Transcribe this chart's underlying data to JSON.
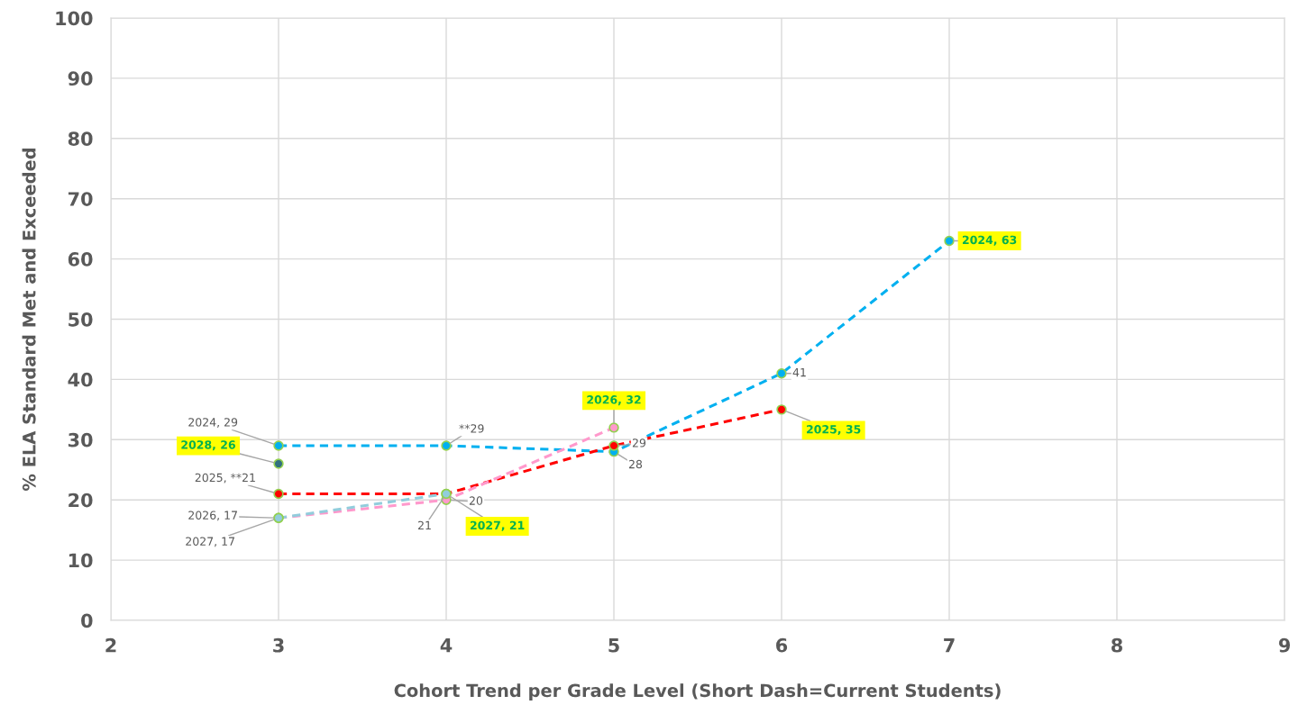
{
  "chart_data": {
    "type": "line",
    "xlabel": "Cohort Trend per Grade Level (Short Dash=Current Students)",
    "ylabel": "% ELA Standard Met and Exceeded",
    "xlim": [
      2,
      9
    ],
    "xticks": [
      2,
      3,
      4,
      5,
      6,
      7,
      8,
      9
    ],
    "ylim": [
      0,
      100
    ],
    "yticks": [
      0,
      10,
      20,
      30,
      40,
      50,
      60,
      70,
      80,
      90,
      100
    ],
    "grid": true,
    "legend": false,
    "marker": "circle",
    "line_style": "dashed",
    "series": [
      {
        "color": "#00b0f0",
        "x": [
          3,
          4,
          5,
          6,
          7
        ],
        "values": [
          29,
          29,
          28,
          41,
          63
        ],
        "value_labels": [
          "2024, 29",
          "**29",
          "28",
          "41",
          "2024, 63"
        ]
      },
      {
        "color": "#ff0000",
        "x": [
          3,
          4,
          5,
          6
        ],
        "values": [
          21,
          21,
          29,
          35
        ],
        "value_labels": [
          "2025, **21",
          "21",
          "29",
          "2025, 35"
        ]
      },
      {
        "color": "#ff99cc",
        "x": [
          3,
          4,
          5
        ],
        "values": [
          17,
          20,
          32
        ],
        "value_labels": [
          "2026, 17",
          "20",
          "2026, 32"
        ]
      },
      {
        "color": "#92cddc",
        "x": [
          3,
          4
        ],
        "values": [
          17,
          21
        ],
        "value_labels": [
          "2027, 17",
          "2027, 21"
        ]
      },
      {
        "type": "scatter",
        "color": "#31707f",
        "x": [
          3
        ],
        "values": [
          26
        ],
        "value_labels": [
          "2028, 26"
        ]
      }
    ]
  }
}
